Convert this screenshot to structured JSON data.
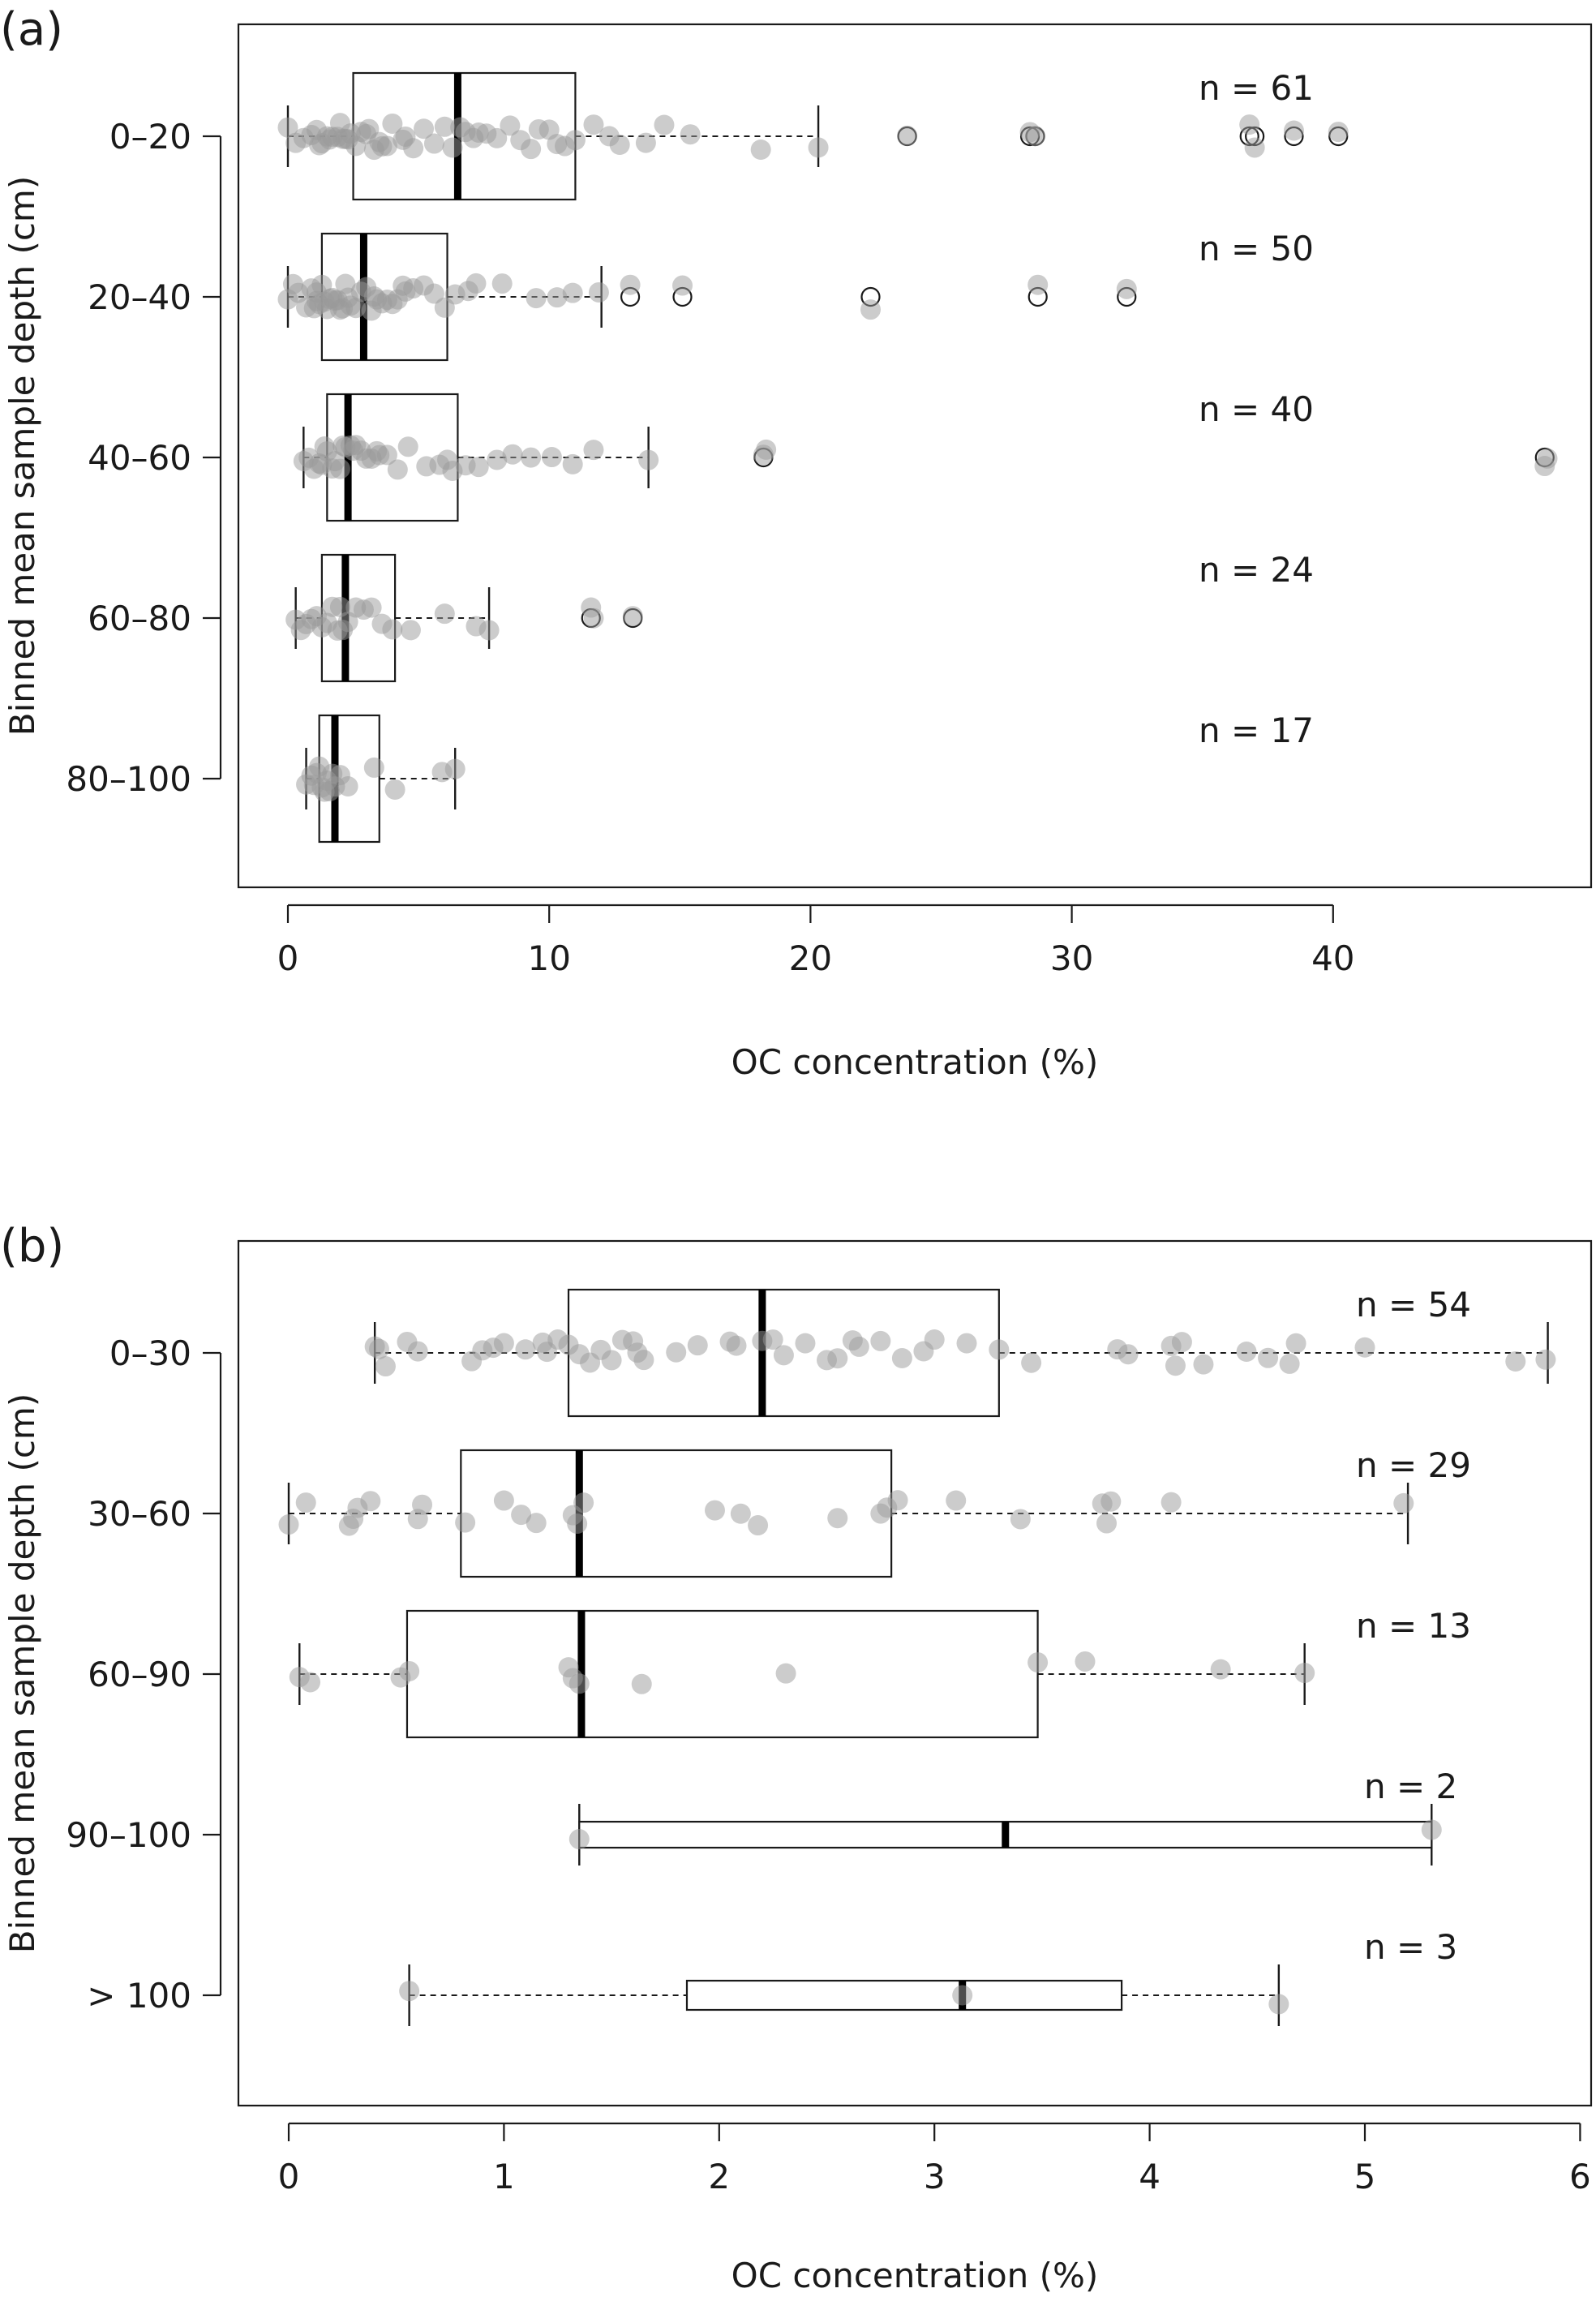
{
  "chart_data": [
    {
      "type": "boxplot",
      "panel_label": "(a)",
      "xlabel": "OC concentration (%)",
      "ylabel": "Binned mean sample depth (cm)",
      "xlim": [
        -2,
        50
      ],
      "xticks": [
        0,
        10,
        20,
        30,
        40
      ],
      "categories": [
        "0–20",
        "20–40",
        "40–60",
        "60–80",
        "80–100"
      ],
      "grid": false,
      "groups": [
        {
          "category": "0–20",
          "n_label": "n = 61",
          "stats": {
            "whisker_low": 0,
            "q1": 2.5,
            "median": 6.5,
            "q3": 11.0,
            "whisker_high": 20.3
          },
          "outliers": [
            23.7,
            28.4,
            28.6,
            36.8,
            37.0,
            38.5,
            40.2
          ],
          "points": [
            0.0,
            0.3,
            0.6,
            0.9,
            1.1,
            1.2,
            1.3,
            1.5,
            1.7,
            1.9,
            2.0,
            2.1,
            2.3,
            2.4,
            2.6,
            2.8,
            3.0,
            3.1,
            3.3,
            3.5,
            3.6,
            3.8,
            4.0,
            4.4,
            4.8,
            5.2,
            5.6,
            6.0,
            6.3,
            6.6,
            6.8,
            7.1,
            7.3,
            7.6,
            8.0,
            8.5,
            8.9,
            9.3,
            9.6,
            10.0,
            10.3,
            10.6,
            11.0,
            11.7,
            12.3,
            12.7,
            13.7,
            14.4,
            15.4,
            18.1,
            20.3,
            23.7,
            28.4,
            28.6,
            36.8,
            37.0,
            38.5,
            40.2,
            1.6,
            2.2,
            4.5
          ]
        },
        {
          "category": "20–40",
          "n_label": "n = 50",
          "stats": {
            "whisker_low": 0,
            "q1": 1.3,
            "median": 2.9,
            "q3": 6.1,
            "whisker_high": 12.0
          },
          "outliers": [
            13.1,
            15.1,
            22.3,
            28.7,
            32.1
          ],
          "points": [
            0.0,
            0.2,
            0.4,
            0.7,
            0.9,
            1.0,
            1.1,
            1.2,
            1.3,
            1.4,
            1.5,
            1.6,
            1.7,
            1.8,
            1.9,
            2.0,
            2.1,
            2.2,
            2.4,
            2.6,
            2.8,
            3.0,
            3.2,
            3.4,
            3.6,
            3.8,
            4.0,
            4.2,
            4.5,
            4.8,
            5.2,
            5.6,
            6.0,
            6.4,
            6.9,
            7.2,
            8.2,
            9.5,
            10.3,
            10.9,
            11.9,
            13.1,
            15.1,
            22.3,
            28.7,
            32.1,
            2.3,
            3.3,
            1.1,
            4.4
          ]
        },
        {
          "category": "40–60",
          "n_label": "n = 40",
          "stats": {
            "whisker_low": 0.6,
            "q1": 1.5,
            "median": 2.3,
            "q3": 6.5,
            "whisker_high": 13.8
          },
          "outliers": [
            18.2,
            48.1
          ],
          "points": [
            0.6,
            0.8,
            1.0,
            1.2,
            1.4,
            1.5,
            1.7,
            1.8,
            2.0,
            2.1,
            2.2,
            2.4,
            2.6,
            2.8,
            3.0,
            3.2,
            3.5,
            3.8,
            4.2,
            4.6,
            5.3,
            5.8,
            6.3,
            6.8,
            7.3,
            8.0,
            8.6,
            9.3,
            10.1,
            10.9,
            11.7,
            13.8,
            18.2,
            18.3,
            48.1,
            48.2,
            1.3,
            2.5,
            3.4,
            6.1
          ]
        },
        {
          "category": "60–80",
          "n_label": "n = 24",
          "stats": {
            "whisker_low": 0.3,
            "q1": 1.3,
            "median": 2.2,
            "q3": 4.1,
            "whisker_high": 7.7
          },
          "outliers": [
            11.6,
            13.2
          ],
          "points": [
            0.3,
            0.5,
            0.7,
            0.9,
            1.1,
            1.3,
            1.5,
            1.7,
            1.9,
            2.1,
            2.3,
            2.6,
            2.9,
            3.2,
            3.6,
            4.0,
            4.7,
            6.0,
            7.2,
            7.7,
            11.6,
            11.7,
            13.2,
            2.0
          ]
        },
        {
          "category": "80–100",
          "n_label": "n = 17",
          "stats": {
            "whisker_low": 0.7,
            "q1": 1.2,
            "median": 1.8,
            "q3": 3.5,
            "whisker_high": 6.4
          },
          "outliers": [],
          "points": [
            0.7,
            0.9,
            1.0,
            1.1,
            1.2,
            1.3,
            1.4,
            1.5,
            1.7,
            1.8,
            2.0,
            2.3,
            3.3,
            4.1,
            5.9,
            6.4,
            1.6
          ]
        }
      ]
    },
    {
      "type": "boxplot",
      "panel_label": "(b)",
      "xlabel": "OC concentration (%)",
      "ylabel": "Binned mean sample depth (cm)",
      "xlim": [
        -0.2,
        6.0
      ],
      "xticks": [
        0,
        1,
        2,
        3,
        4,
        5,
        6
      ],
      "categories": [
        "0–30",
        "30–60",
        "60–90",
        "90–100",
        "> 100"
      ],
      "grid": false,
      "groups": [
        {
          "category": "0–30",
          "n_label": "n = 54",
          "stats": {
            "whisker_low": 0.4,
            "q1": 1.3,
            "median": 2.2,
            "q3": 3.3,
            "whisker_high": 5.85
          },
          "outliers": [],
          "points": [
            0.4,
            0.45,
            0.55,
            0.6,
            0.85,
            0.9,
            0.95,
            1.0,
            1.1,
            1.2,
            1.25,
            1.3,
            1.35,
            1.4,
            1.5,
            1.55,
            1.6,
            1.65,
            1.8,
            1.9,
            2.05,
            2.2,
            2.25,
            2.3,
            2.4,
            2.5,
            2.55,
            2.65,
            2.75,
            2.85,
            2.95,
            3.0,
            3.15,
            3.3,
            3.45,
            3.85,
            4.1,
            4.15,
            4.25,
            4.45,
            4.55,
            4.65,
            4.68,
            5.0,
            5.7,
            5.84,
            0.42,
            1.45,
            2.08,
            2.62,
            3.9,
            4.12,
            1.18,
            1.62
          ]
        },
        {
          "category": "30–60",
          "n_label": "n = 29",
          "stats": {
            "whisker_low": 0.0,
            "q1": 0.8,
            "median": 1.35,
            "q3": 2.8,
            "whisker_high": 5.2
          },
          "outliers": [],
          "points": [
            0.0,
            0.08,
            0.28,
            0.32,
            0.38,
            0.6,
            0.82,
            1.0,
            1.08,
            1.15,
            1.32,
            1.37,
            1.98,
            2.1,
            2.18,
            2.55,
            2.75,
            2.78,
            2.83,
            3.1,
            3.4,
            3.78,
            3.82,
            3.8,
            4.1,
            5.18,
            0.3,
            1.34,
            0.62
          ]
        },
        {
          "category": "60–90",
          "n_label": "n = 13",
          "stats": {
            "whisker_low": 0.05,
            "q1": 0.55,
            "median": 1.36,
            "q3": 3.48,
            "whisker_high": 4.72
          },
          "outliers": [],
          "points": [
            0.05,
            0.1,
            0.52,
            0.56,
            1.3,
            1.35,
            1.64,
            2.31,
            3.48,
            3.7,
            4.33,
            4.72,
            1.32
          ]
        },
        {
          "category": "90–100",
          "n_label": "n = 2",
          "stats": {
            "whisker_low": 1.35,
            "q1": 1.35,
            "median": 3.33,
            "q3": 5.31,
            "whisker_high": 5.31
          },
          "outliers": [],
          "points": [
            1.35,
            5.31
          ]
        },
        {
          "category": "> 100",
          "n_label": "n = 3",
          "stats": {
            "whisker_low": 0.56,
            "q1": 1.85,
            "median": 3.13,
            "q3": 3.87,
            "whisker_high": 4.6
          },
          "outliers": [],
          "points": [
            0.56,
            3.13,
            4.6
          ]
        }
      ]
    }
  ]
}
